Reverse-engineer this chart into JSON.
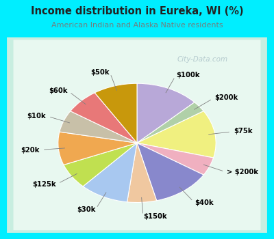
{
  "title": "Income distribution in Eureka, WI (%)",
  "subtitle": "American Indian and Alaska Native residents",
  "labels": [
    "$100k",
    "$200k",
    "$75k",
    "> $200k",
    "$40k",
    "$150k",
    "$30k",
    "$125k",
    "$20k",
    "$10k",
    "$60k",
    "$50k"
  ],
  "values": [
    13,
    3,
    13,
    5,
    12,
    6,
    10,
    7,
    9,
    6,
    7,
    9
  ],
  "colors": [
    "#b8a8d8",
    "#b0d0a8",
    "#f0f080",
    "#f0b0c0",
    "#8888cc",
    "#f0c8a0",
    "#a8c8f0",
    "#c0e050",
    "#f0a850",
    "#c8c0a8",
    "#e87878",
    "#c8980c"
  ],
  "bg_cyan": "#00eeff",
  "bg_chart_outer": "#c8eee0",
  "bg_chart_inner": "#e8f8f0",
  "watermark": "City-Data.com",
  "startangle": 90,
  "title_color": "#222222",
  "subtitle_color": "#708080"
}
